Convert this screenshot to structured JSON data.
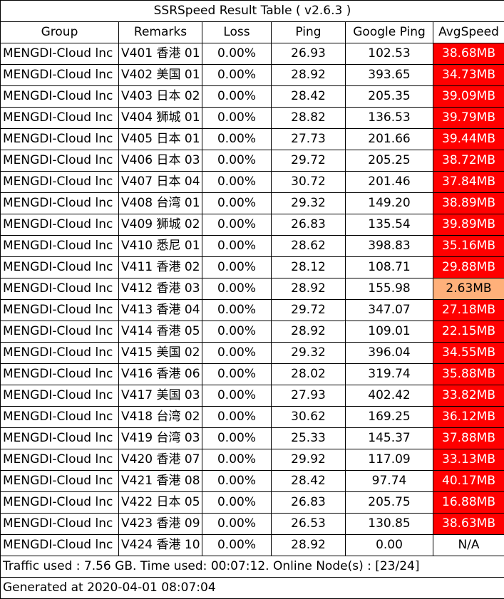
{
  "title": "SSRSpeed Result Table ( v2.6.3 )",
  "colors": {
    "speed_high": "#ff0000",
    "speed_low": "#ffb07a",
    "speed_none": "#ffffff",
    "border": "#000000"
  },
  "headers": [
    "Group",
    "Remarks",
    "Loss",
    "Ping",
    "Google Ping",
    "AvgSpeed"
  ],
  "rows": [
    {
      "group": "MENGDI-Cloud lnc",
      "remarks": "V401 香港 01",
      "loss": "0.00%",
      "ping": "26.93",
      "gping": "102.53",
      "speed": "38.68MB",
      "level": "high"
    },
    {
      "group": "MENGDI-Cloud lnc",
      "remarks": "V402 美国 01",
      "loss": "0.00%",
      "ping": "28.92",
      "gping": "393.65",
      "speed": "34.73MB",
      "level": "high"
    },
    {
      "group": "MENGDI-Cloud lnc",
      "remarks": "V403 日本 02",
      "loss": "0.00%",
      "ping": "28.42",
      "gping": "205.35",
      "speed": "39.09MB",
      "level": "high"
    },
    {
      "group": "MENGDI-Cloud lnc",
      "remarks": "V404 狮城 01",
      "loss": "0.00%",
      "ping": "28.82",
      "gping": "136.53",
      "speed": "39.79MB",
      "level": "high"
    },
    {
      "group": "MENGDI-Cloud lnc",
      "remarks": "V405 日本 01",
      "loss": "0.00%",
      "ping": "27.73",
      "gping": "201.66",
      "speed": "39.44MB",
      "level": "high"
    },
    {
      "group": "MENGDI-Cloud lnc",
      "remarks": "V406 日本 03",
      "loss": "0.00%",
      "ping": "29.72",
      "gping": "205.25",
      "speed": "38.72MB",
      "level": "high"
    },
    {
      "group": "MENGDI-Cloud lnc",
      "remarks": "V407 日本 04",
      "loss": "0.00%",
      "ping": "30.72",
      "gping": "201.46",
      "speed": "37.84MB",
      "level": "high"
    },
    {
      "group": "MENGDI-Cloud lnc",
      "remarks": "V408 台湾 01",
      "loss": "0.00%",
      "ping": "29.32",
      "gping": "149.20",
      "speed": "38.89MB",
      "level": "high"
    },
    {
      "group": "MENGDI-Cloud lnc",
      "remarks": "V409 狮城 02",
      "loss": "0.00%",
      "ping": "26.83",
      "gping": "135.54",
      "speed": "39.89MB",
      "level": "high"
    },
    {
      "group": "MENGDI-Cloud lnc",
      "remarks": "V410 悉尼 01",
      "loss": "0.00%",
      "ping": "28.62",
      "gping": "398.83",
      "speed": "35.16MB",
      "level": "high"
    },
    {
      "group": "MENGDI-Cloud lnc",
      "remarks": "V411 香港 02",
      "loss": "0.00%",
      "ping": "28.12",
      "gping": "108.71",
      "speed": "29.88MB",
      "level": "high"
    },
    {
      "group": "MENGDI-Cloud lnc",
      "remarks": "V412 香港 03",
      "loss": "0.00%",
      "ping": "28.92",
      "gping": "155.98",
      "speed": "2.63MB",
      "level": "low"
    },
    {
      "group": "MENGDI-Cloud lnc",
      "remarks": "V413 香港 04",
      "loss": "0.00%",
      "ping": "29.72",
      "gping": "347.07",
      "speed": "27.18MB",
      "level": "high"
    },
    {
      "group": "MENGDI-Cloud lnc",
      "remarks": "V414 香港 05",
      "loss": "0.00%",
      "ping": "28.92",
      "gping": "109.01",
      "speed": "22.15MB",
      "level": "high"
    },
    {
      "group": "MENGDI-Cloud lnc",
      "remarks": "V415 美国 02",
      "loss": "0.00%",
      "ping": "29.32",
      "gping": "396.04",
      "speed": "34.55MB",
      "level": "high"
    },
    {
      "group": "MENGDI-Cloud lnc",
      "remarks": "V416 香港 06",
      "loss": "0.00%",
      "ping": "28.02",
      "gping": "319.74",
      "speed": "35.88MB",
      "level": "high"
    },
    {
      "group": "MENGDI-Cloud lnc",
      "remarks": "V417 美国 03",
      "loss": "0.00%",
      "ping": "27.93",
      "gping": "402.42",
      "speed": "33.82MB",
      "level": "high"
    },
    {
      "group": "MENGDI-Cloud lnc",
      "remarks": "V418 台湾 02",
      "loss": "0.00%",
      "ping": "30.62",
      "gping": "169.25",
      "speed": "36.12MB",
      "level": "high"
    },
    {
      "group": "MENGDI-Cloud lnc",
      "remarks": "V419 台湾 03",
      "loss": "0.00%",
      "ping": "25.33",
      "gping": "145.37",
      "speed": "37.88MB",
      "level": "high"
    },
    {
      "group": "MENGDI-Cloud lnc",
      "remarks": "V420 香港 07",
      "loss": "0.00%",
      "ping": "29.92",
      "gping": "117.09",
      "speed": "33.13MB",
      "level": "high"
    },
    {
      "group": "MENGDI-Cloud lnc",
      "remarks": "V421 香港 08",
      "loss": "0.00%",
      "ping": "28.42",
      "gping": "97.74",
      "speed": "40.17MB",
      "level": "high"
    },
    {
      "group": "MENGDI-Cloud lnc",
      "remarks": "V422 日本 05",
      "loss": "0.00%",
      "ping": "26.83",
      "gping": "205.75",
      "speed": "16.88MB",
      "level": "high"
    },
    {
      "group": "MENGDI-Cloud lnc",
      "remarks": "V423 香港 09",
      "loss": "0.00%",
      "ping": "26.53",
      "gping": "130.85",
      "speed": "38.63MB",
      "level": "high"
    },
    {
      "group": "MENGDI-Cloud lnc",
      "remarks": "V424 香港 10",
      "loss": "0.00%",
      "ping": "28.92",
      "gping": "0.00",
      "speed": "N/A",
      "level": "none"
    }
  ],
  "footer": {
    "traffic": "Traffic used : 7.56 GB. Time used: 00:07:12. Online Node(s) : [23/24]",
    "generated": "Generated at 2020-04-01 08:07:04"
  }
}
